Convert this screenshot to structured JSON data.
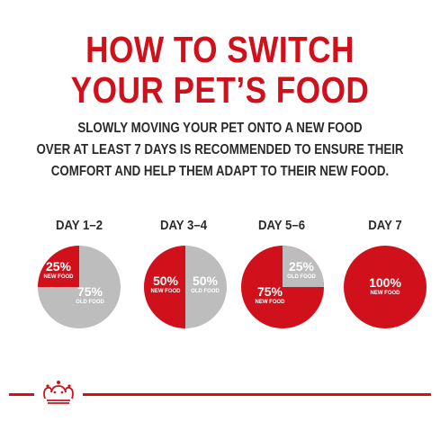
{
  "title": {
    "line1": "HOW TO SWITCH",
    "line2": "YOUR PET’S FOOD"
  },
  "intro": {
    "line1": "SLOWLY MOVING YOUR PET ONTO A NEW FOOD",
    "line2": "OVER AT LEAST 7 DAYS IS RECOMMENDED TO ENSURE THEIR",
    "line3": "COMFORT AND HELP THEM ADAPT TO THEIR NEW FOOD."
  },
  "steps": [
    {
      "day": "DAY 1–2",
      "new_pct": "25%",
      "new_label": "NEW FOOD",
      "new_share": 0.25,
      "old_pct": "75%",
      "old_label": "OLD FOOD"
    },
    {
      "day": "DAY 3–4",
      "new_pct": "50%",
      "new_label": "NEW FOOD",
      "new_share": 0.5,
      "old_pct": "50%",
      "old_label": "OLD FOOD"
    },
    {
      "day": "DAY 5–6",
      "new_pct": "75%",
      "new_label": "NEW FOOD",
      "new_share": 0.75,
      "old_pct": "25%",
      "old_label": "OLD FOOD"
    },
    {
      "day": "DAY 7",
      "new_pct": "100%",
      "new_label": "NEW FOOD",
      "new_share": 1.0
    }
  ],
  "colors": {
    "brand_red": "#d0111b",
    "old_food_gray": "#bdbdbd",
    "text_dark": "#2b2b2b"
  },
  "footer": {
    "logo_icon": "crown-icon"
  }
}
